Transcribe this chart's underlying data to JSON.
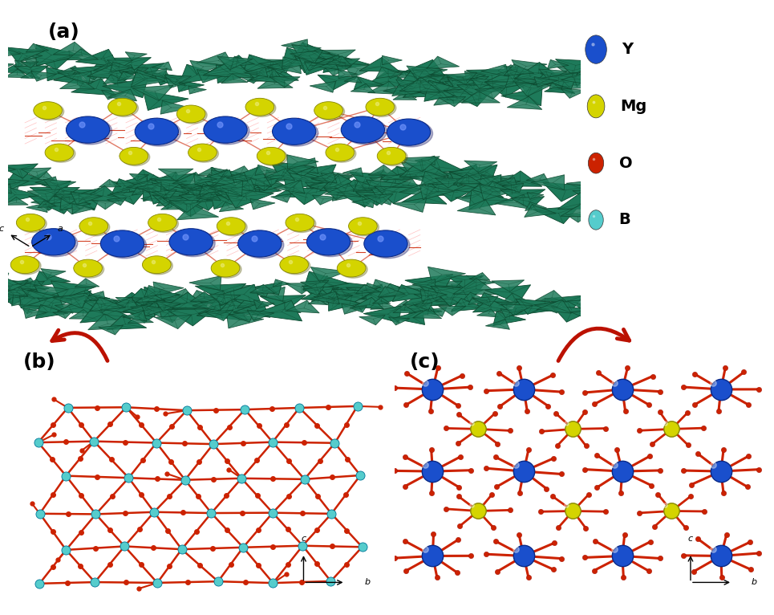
{
  "figure_width": 9.65,
  "figure_height": 7.66,
  "dpi": 100,
  "background_color": "#ffffff",
  "panel_labels": [
    "(a)",
    "(b)",
    "(c)"
  ],
  "panel_label_fontsize": 18,
  "panel_label_color": "#000000",
  "legend_items": [
    {
      "label": "Y",
      "color": "#1a4fcc"
    },
    {
      "label": "Mg",
      "color": "#d4d400"
    },
    {
      "label": "O",
      "color": "#cc2200"
    },
    {
      "label": "B",
      "color": "#55cccc"
    }
  ],
  "legend_fontsize": 14,
  "borate_fill": "#1e7a5a",
  "borate_edge": "#0d4a30",
  "borate_dark": "#0a3020",
  "y_color": "#1a4fcc",
  "y_edge": "#0a2a88",
  "mg_color": "#d4d400",
  "mg_edge": "#888800",
  "o_color": "#cc2200",
  "b_color": "#55cccc",
  "b_edge": "#007799",
  "arrow_color": "#bb1100",
  "axis_color": "#111111"
}
